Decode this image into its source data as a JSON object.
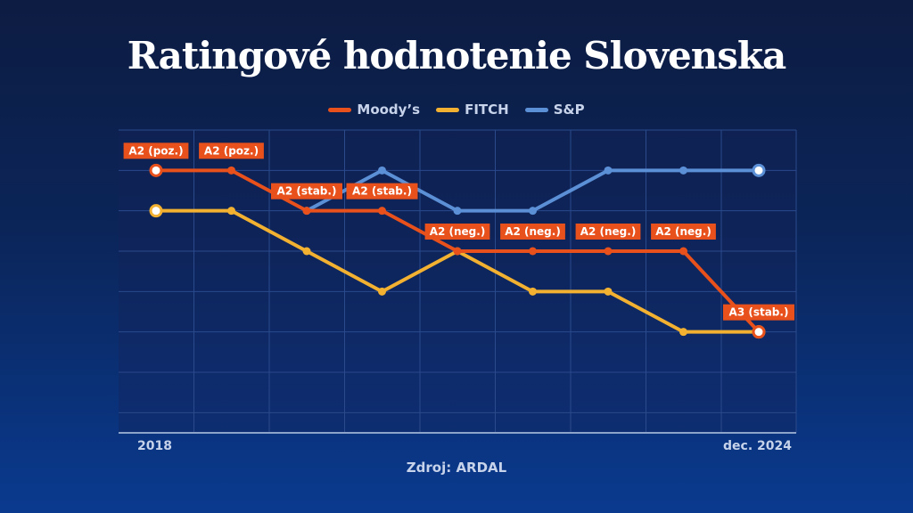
{
  "title": "Ratingové hodnotenie Slovenska",
  "source": "Zdroj: ARDAL",
  "colors": {
    "moodys": "#e8511c",
    "fitch": "#f2b130",
    "sp": "#5b8fd6",
    "label_bg": "#e8511c"
  },
  "chart_data": {
    "type": "line",
    "title": "Ratingové hodnotenie Slovenska",
    "x_tick_labels": [
      "2018",
      "dec. 2024"
    ],
    "x": [
      0,
      1,
      2,
      3,
      4,
      5,
      6,
      7,
      8
    ],
    "ylim": [
      -1.5,
      6
    ],
    "grid": true,
    "legend_position": "top-center",
    "series": [
      {
        "name": "Moody’s",
        "key": "moodys",
        "values": [
          5,
          5,
          4,
          4,
          3,
          3,
          3,
          3,
          1
        ]
      },
      {
        "name": "FITCH",
        "key": "fitch",
        "values": [
          4,
          4,
          3,
          2,
          3,
          2,
          2,
          1,
          1
        ]
      },
      {
        "name": "S&P",
        "key": "sp",
        "values": [
          null,
          null,
          4,
          5,
          4,
          4,
          5,
          5,
          5
        ]
      }
    ],
    "labels": [
      {
        "x": 0,
        "series": "moodys",
        "text": "A2 (poz.)"
      },
      {
        "x": 1,
        "series": "moodys",
        "text": "A2 (poz.)"
      },
      {
        "x": 2,
        "series": "moodys",
        "text": "A2 (stab.)"
      },
      {
        "x": 3,
        "series": "moodys",
        "text": "A2 (stab.)"
      },
      {
        "x": 4,
        "series": "moodys",
        "text": "A2 (neg.)"
      },
      {
        "x": 5,
        "series": "moodys",
        "text": "A2 (neg.)"
      },
      {
        "x": 6,
        "series": "moodys",
        "text": "A2 (neg.)"
      },
      {
        "x": 7,
        "series": "moodys",
        "text": "A2 (neg.)"
      },
      {
        "x": 8,
        "series": "moodys",
        "text": "A3 (stab.)"
      }
    ]
  }
}
